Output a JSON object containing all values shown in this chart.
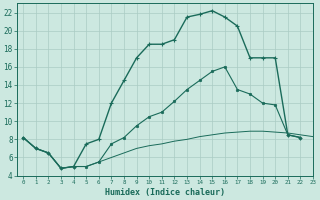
{
  "background_color": "#cce8e0",
  "grid_color": "#aaccc4",
  "line_color": "#1a6b5a",
  "xlabel": "Humidex (Indice chaleur)",
  "xlim": [
    -0.5,
    23
  ],
  "ylim": [
    4,
    23
  ],
  "xticks": [
    0,
    1,
    2,
    3,
    4,
    5,
    6,
    7,
    8,
    9,
    10,
    11,
    12,
    13,
    14,
    15,
    16,
    17,
    18,
    19,
    20,
    21,
    22,
    23
  ],
  "yticks": [
    4,
    6,
    8,
    10,
    12,
    14,
    16,
    18,
    20,
    22
  ],
  "curve1_x": [
    0,
    1,
    2,
    3,
    4,
    5,
    6,
    7,
    8,
    9,
    10,
    11,
    12,
    13,
    14,
    15,
    16,
    17,
    18,
    19,
    20,
    21,
    22,
    23
  ],
  "curve1_y": [
    8.2,
    7.0,
    6.5,
    4.8,
    5.0,
    7.5,
    8.0,
    12.0,
    14.5,
    17.0,
    18.5,
    18.5,
    19.0,
    21.5,
    21.8,
    22.2,
    21.5,
    20.5,
    17.0,
    17.0,
    17.0,
    8.5,
    8.2,
    null
  ],
  "curve2_x": [
    0,
    1,
    2,
    3,
    4,
    5,
    6,
    7,
    8,
    9,
    10,
    11,
    12,
    13,
    14,
    15,
    16,
    17,
    18,
    19,
    20,
    21,
    22,
    23
  ],
  "curve2_y": [
    8.2,
    7.0,
    6.5,
    4.8,
    5.0,
    5.0,
    5.5,
    7.5,
    8.2,
    9.5,
    10.5,
    11.0,
    12.2,
    13.5,
    14.5,
    15.5,
    16.0,
    13.5,
    13.0,
    12.0,
    11.8,
    8.5,
    8.2,
    null
  ],
  "curve3_x": [
    0,
    1,
    2,
    3,
    4,
    5,
    6,
    7,
    8,
    9,
    10,
    11,
    12,
    13,
    14,
    15,
    16,
    17,
    18,
    19,
    20,
    21,
    22,
    23
  ],
  "curve3_y": [
    8.2,
    7.0,
    6.5,
    4.8,
    5.0,
    5.0,
    5.5,
    6.0,
    6.5,
    7.0,
    7.3,
    7.5,
    7.8,
    8.0,
    8.3,
    8.5,
    8.7,
    8.8,
    8.9,
    8.9,
    8.8,
    8.7,
    8.5,
    8.3
  ]
}
